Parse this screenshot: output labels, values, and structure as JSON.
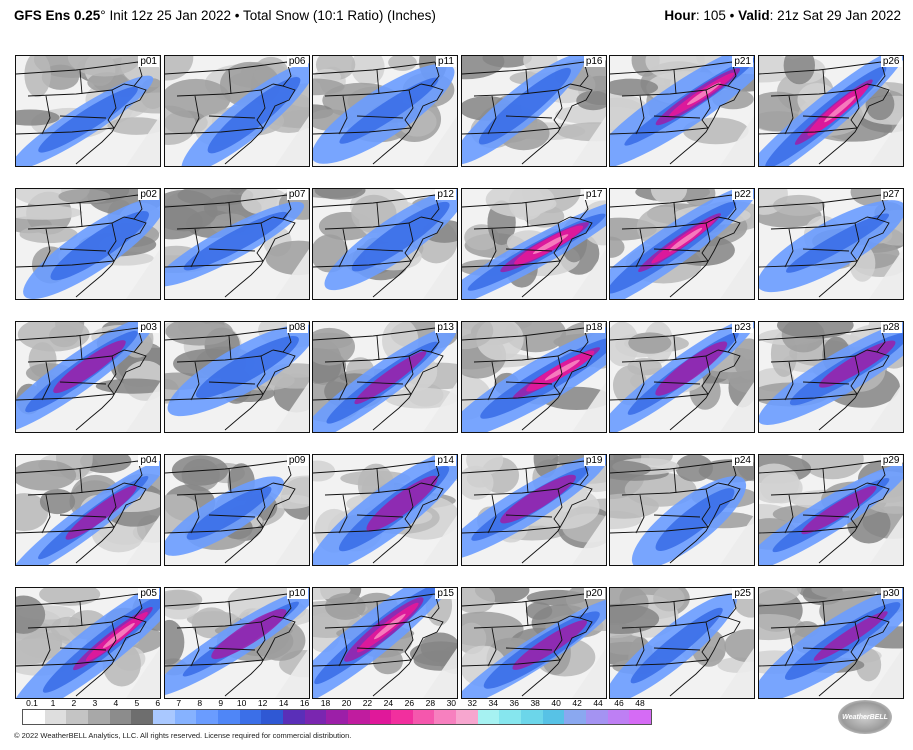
{
  "header": {
    "model": "GFS Ens 0.25",
    "degree": "°",
    "init_text": " Init 12z 25 Jan 2022",
    "bullet": " • ",
    "product": "Total Snow (10:1 Ratio) (Inches)",
    "hour_label": "Hour",
    "hour_value": ": 105",
    "valid_label": "Valid",
    "valid_value": ": 21z Sat 29 Jan 2022"
  },
  "panels": [
    [
      "p01",
      "p06",
      "p11",
      "p16",
      "p21",
      "p26"
    ],
    [
      "p02",
      "p07",
      "p12",
      "p17",
      "p22",
      "p27"
    ],
    [
      "p03",
      "p08",
      "p13",
      "p18",
      "p23",
      "p28"
    ],
    [
      "p04",
      "p09",
      "p14",
      "p19",
      "p24",
      "p29"
    ],
    [
      "p05",
      "p10",
      "p15",
      "p20",
      "p25",
      "p30"
    ]
  ],
  "intensity": {
    "p01": 1,
    "p06": 1,
    "p11": 1,
    "p16": 1,
    "p21": 3,
    "p26": 3,
    "p02": 1,
    "p07": 1,
    "p12": 1,
    "p17": 3,
    "p22": 3,
    "p27": 1,
    "p03": 2,
    "p08": 1,
    "p13": 2,
    "p18": 3,
    "p23": 2,
    "p28": 2,
    "p04": 2,
    "p09": 0,
    "p14": 2,
    "p19": 2,
    "p24": 0,
    "p29": 2,
    "p05": 3,
    "p10": 2,
    "p15": 3,
    "p20": 2,
    "p25": 1,
    "p30": 2
  },
  "colorbar": {
    "ticks": [
      "0.1",
      "1",
      "2",
      "3",
      "4",
      "5",
      "6",
      "7",
      "8",
      "9",
      "10",
      "12",
      "14",
      "16",
      "18",
      "20",
      "22",
      "24",
      "26",
      "28",
      "30",
      "32",
      "34",
      "36",
      "38",
      "40",
      "42",
      "44",
      "46",
      "48"
    ],
    "colors": [
      "#ffffff",
      "#dedede",
      "#c4c4c4",
      "#a8a8a8",
      "#8c8c8c",
      "#6e6e6e",
      "#a9c8ff",
      "#86b2ff",
      "#6a9cff",
      "#4f86f7",
      "#3b6fe8",
      "#2f58d4",
      "#5a2fb8",
      "#7a26b0",
      "#9c1fa8",
      "#c01c9f",
      "#e0189a",
      "#f22f9e",
      "#f557ad",
      "#f780bf",
      "#f7a6cf",
      "#a6f2f2",
      "#86e6ee",
      "#6cd6ea",
      "#57c2e6",
      "#8aa8f0",
      "#a493f2",
      "#be7ff4",
      "#d56bf5"
    ]
  },
  "copyright": "© 2022 WeatherBELL Analytics, LLC. All rights reserved. License required for commercial distribution.",
  "logo_text": "WeatherBELL"
}
